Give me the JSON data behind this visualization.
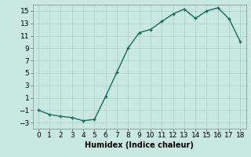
{
  "x": [
    0,
    1,
    2,
    3,
    4,
    5,
    6,
    7,
    8,
    9,
    10,
    11,
    12,
    13,
    14,
    15,
    16,
    17,
    18
  ],
  "y": [
    -1,
    -1.7,
    -2,
    -2.2,
    -2.7,
    -2.5,
    1.2,
    5.1,
    9.0,
    11.5,
    12.0,
    13.3,
    14.5,
    15.3,
    13.8,
    15.0,
    15.5,
    13.7,
    10.0
  ],
  "line_color": "#1a6b5e",
  "marker": "+",
  "marker_size": 3,
  "marker_lw": 1.0,
  "bg_color": "#c8e8e0",
  "grid_color": "#b0d8d0",
  "xlabel": "Humidex (Indice chaleur)",
  "xlabel_fontsize": 7,
  "tick_fontsize": 6.5,
  "xlim": [
    -0.5,
    18.5
  ],
  "ylim": [
    -4,
    16
  ],
  "yticks": [
    -3,
    -1,
    1,
    3,
    5,
    7,
    9,
    11,
    13,
    15
  ],
  "xticks": [
    0,
    1,
    2,
    3,
    4,
    5,
    6,
    7,
    8,
    9,
    10,
    11,
    12,
    13,
    14,
    15,
    16,
    17,
    18
  ]
}
